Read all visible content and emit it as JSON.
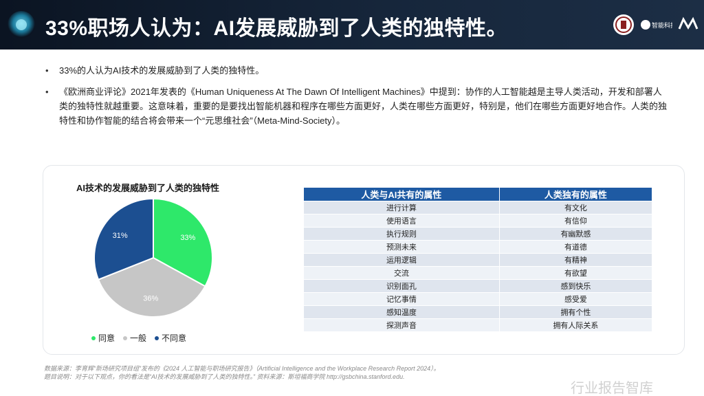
{
  "slide": {
    "title": "33%职场人认为：AI发展威胁到了人类的独特性。",
    "brand_logo_text": "智能科技",
    "bullets": [
      "33%的人认为AI技术的发展威胁到了人类的独特性。",
      "《欧洲商业评论》2021年发表的《Human Uniqueness At The Dawn Of Intelligent Machines》中提到：协作的人工智能越是主导人类活动，开发和部署人类的独特性就越重要。这意味着，重要的是要找出智能机器和程序在哪些方面更好，人类在哪些方面更好，特别是，他们在哪些方面更好地合作。人类的独特性和协作智能的结合将会带来一个“元思维社会”（Meta-Mind-Society）。"
    ],
    "footnote_lines": [
      "数据来源：李育辉“新场研究项目组”发布的《2024 人工智能与职场研究报告》（Artificial Intelligence and the Workplace Research Report 2024）。",
      "题目说明：对于以下观点，你的看法是“AI技术的发展威胁到了人类的独特性。” 资料来源：斯坦福商学院 http://gsbchina.stanford.edu."
    ],
    "watermark": "行业报告智库"
  },
  "chart_data": {
    "type": "pie",
    "title": "AI技术的发展威胁到了人类的独特性",
    "slices": [
      {
        "label": "同意",
        "value": 33,
        "display": "33%",
        "color": "#2ee86a"
      },
      {
        "label": "一般",
        "value": 36,
        "display": "36%",
        "color": "#c6c6c6"
      },
      {
        "label": "不同意",
        "value": 31,
        "display": "31%",
        "color": "#1c4f91"
      }
    ],
    "legend_position": "bottom"
  },
  "table": {
    "headers": [
      "人类与AI共有的属性",
      "人类独有的属性"
    ],
    "rows": [
      [
        "进行计算",
        "有文化"
      ],
      [
        "使用语言",
        "有信仰"
      ],
      [
        "执行规则",
        "有幽默感"
      ],
      [
        "预测未来",
        "有道德"
      ],
      [
        "运用逻辑",
        "有精神"
      ],
      [
        "交流",
        "有欲望"
      ],
      [
        "识别面孔",
        "感到快乐"
      ],
      [
        "记忆事情",
        "感受爱"
      ],
      [
        "感知温度",
        "拥有个性"
      ],
      [
        "探测声音",
        "拥有人际关系"
      ]
    ]
  }
}
